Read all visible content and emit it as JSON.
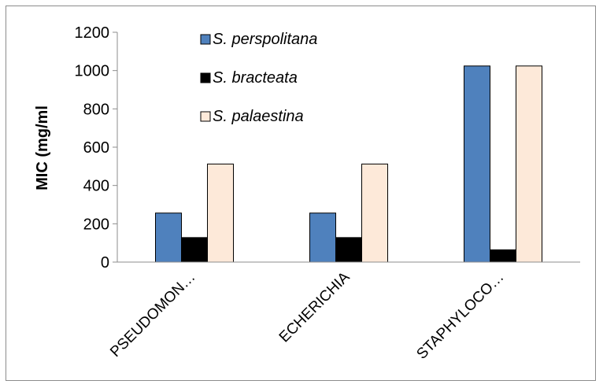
{
  "chart_data": {
    "type": "bar",
    "title": "",
    "xlabel": "",
    "ylabel": "MIC (mg/ml",
    "ylim": [
      0,
      1200
    ],
    "yticks": [
      0,
      200,
      400,
      600,
      800,
      1000,
      1200
    ],
    "grid": false,
    "legend_position": "top-left",
    "categories": [
      "PSEUDOMON…",
      "ECHERICHIA",
      "STAPHYLOCO…"
    ],
    "series": [
      {
        "name": "S. perspolitana",
        "color": "#4f81bd",
        "values": [
          256,
          256,
          1024
        ]
      },
      {
        "name": "S. bracteata",
        "color": "#000000",
        "values": [
          128,
          128,
          64
        ]
      },
      {
        "name": "S. palaestina",
        "color": "#fde9d9",
        "values": [
          512,
          512,
          1024
        ]
      }
    ]
  }
}
